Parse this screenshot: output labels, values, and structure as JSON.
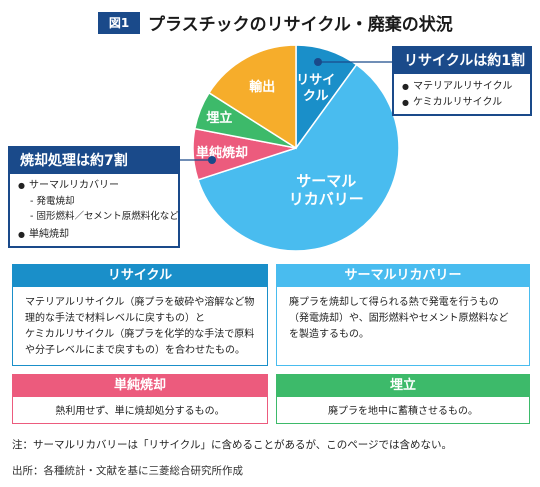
{
  "header": {
    "figure_label": "図1",
    "title": "プラスチックのリサイクル・廃棄の状況"
  },
  "chart_data": {
    "type": "pie",
    "title": "",
    "slices": [
      {
        "label_lines": [
          "リサイ",
          "クル"
        ],
        "value": 10,
        "color": "#1a8fc9"
      },
      {
        "label_lines": [
          "サーマル",
          "リカバリー"
        ],
        "value": 60,
        "color": "#49bcef"
      },
      {
        "label_lines": [
          "単純焼却"
        ],
        "value": 8,
        "color": "#ec5b7d"
      },
      {
        "label_lines": [
          "埋立"
        ],
        "value": 6,
        "color": "#3dba6a"
      },
      {
        "label_lines": [
          "輸出"
        ],
        "value": 16,
        "color": "#f6ad2b"
      }
    ]
  },
  "recycle_callout": {
    "heading": "リサイクルは約1割",
    "items": [
      "マテリアルリサイクル",
      "ケミカルリサイクル"
    ]
  },
  "incineration_callout": {
    "heading": "焼却処理は約7割",
    "item1": "サーマルリカバリー",
    "sub_items": [
      "発電焼却",
      "固形燃料／セメント原燃料化など"
    ],
    "item2": "単純焼却"
  },
  "definitions": {
    "recycle": {
      "title": "リサイクル",
      "lines": [
        "マテリアルリサイクル（廃プラを破砕や溶解など物",
        "理的な手法で材料レベルに戻すもの）と",
        "ケミカルリサイクル（廃プラを化学的な手法で原料",
        "や分子レベルにまで戻すもの）を合わせたもの。"
      ],
      "color": "#1a8fc9"
    },
    "thermal": {
      "title": "サーマルリカバリー",
      "lines": [
        "廃プラを焼却して得られる熱で発電を行うもの",
        "（発電焼却）や、固形燃料やセメント原燃料など",
        "を製造するもの。"
      ],
      "color": "#49bcef"
    },
    "simple": {
      "title": "単純焼却",
      "lines": [
        "熱利用せず、単に焼却処分するもの。"
      ],
      "color": "#ec5b7d"
    },
    "landfill": {
      "title": "埋立",
      "lines": [
        "廃プラを地中に蓄積させるもの。"
      ],
      "color": "#3dba6a"
    }
  },
  "footnote": "注：サーマルリカバリーは「リサイクル」に含めることがあるが、このページでは含めない。",
  "source": "出所：各種統計・文献を基に三菱総合研究所作成"
}
